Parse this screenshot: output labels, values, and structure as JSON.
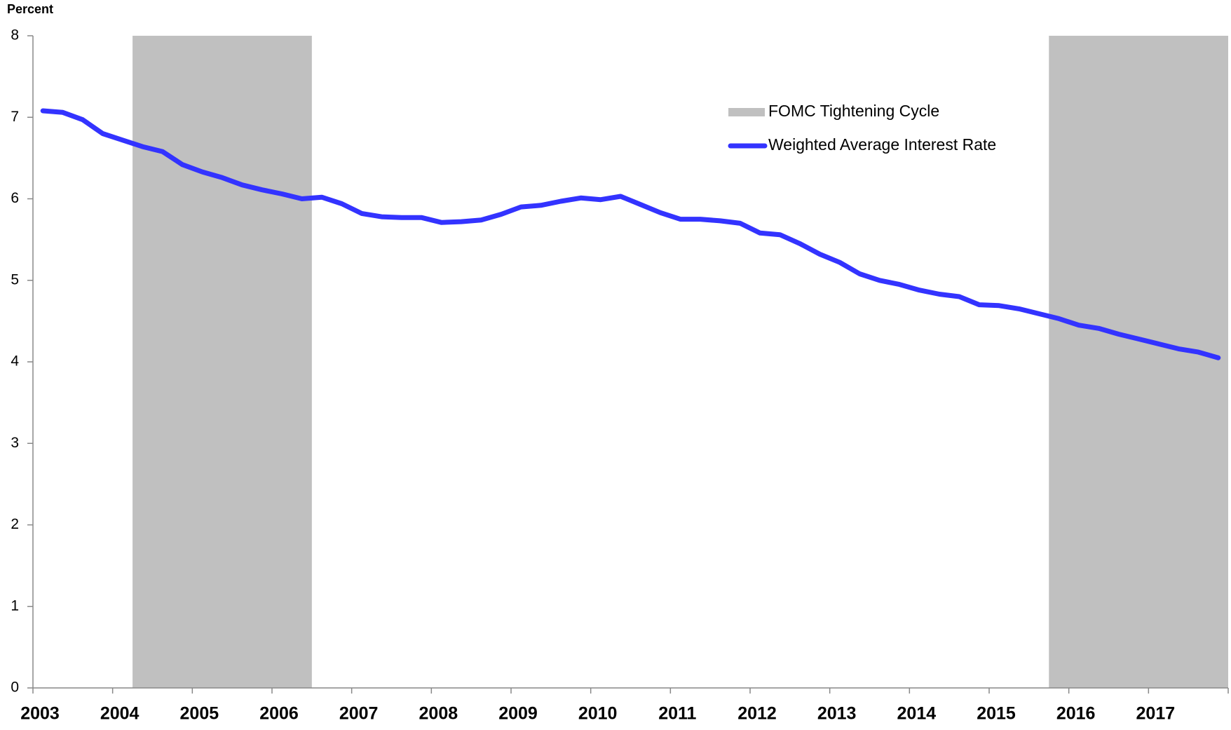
{
  "chart_data": {
    "type": "line",
    "y_label": "Percent",
    "x": [
      2003.125,
      2003.375,
      2003.625,
      2003.875,
      2004.125,
      2004.375,
      2004.625,
      2004.875,
      2005.125,
      2005.375,
      2005.625,
      2005.875,
      2006.125,
      2006.375,
      2006.625,
      2006.875,
      2007.125,
      2007.375,
      2007.625,
      2007.875,
      2008.125,
      2008.375,
      2008.625,
      2008.875,
      2009.125,
      2009.375,
      2009.625,
      2009.875,
      2010.125,
      2010.375,
      2010.625,
      2010.875,
      2011.125,
      2011.375,
      2011.625,
      2011.875,
      2012.125,
      2012.375,
      2012.625,
      2012.875,
      2013.125,
      2013.375,
      2013.625,
      2013.875,
      2014.125,
      2014.375,
      2014.625,
      2014.875,
      2015.125,
      2015.375,
      2015.625,
      2015.875,
      2016.125,
      2016.375,
      2016.625,
      2016.875,
      2017.125,
      2017.375,
      2017.625,
      2017.875
    ],
    "series": [
      {
        "name": "Weighted Average Interest Rate",
        "color": "#3333ff",
        "values": [
          7.08,
          7.06,
          6.97,
          6.8,
          6.72,
          6.64,
          6.58,
          6.42,
          6.33,
          6.26,
          6.17,
          6.11,
          6.06,
          6.0,
          6.02,
          5.94,
          5.82,
          5.78,
          5.77,
          5.77,
          5.71,
          5.72,
          5.74,
          5.81,
          5.9,
          5.92,
          5.97,
          6.01,
          5.99,
          6.03,
          5.93,
          5.83,
          5.75,
          5.75,
          5.73,
          5.7,
          5.58,
          5.56,
          5.45,
          5.32,
          5.22,
          5.08,
          5.0,
          4.95,
          4.88,
          4.83,
          4.8,
          4.7,
          4.69,
          4.65,
          4.59,
          4.53,
          4.45,
          4.41,
          4.34,
          4.28,
          4.22,
          4.16,
          4.12,
          4.05
        ]
      }
    ],
    "shaded": {
      "name": "FOMC Tightening Cycle",
      "color": "#c0c0c0",
      "ranges": [
        [
          2004.25,
          2006.5
        ],
        [
          2015.75,
          2018
        ]
      ]
    },
    "xlim": [
      2003,
      2018
    ],
    "xticks": [
      2003,
      2004,
      2005,
      2006,
      2007,
      2008,
      2009,
      2010,
      2011,
      2012,
      2013,
      2014,
      2015,
      2016,
      2017
    ],
    "ylim": [
      0,
      8
    ],
    "yticks": [
      0,
      1,
      2,
      3,
      4,
      5,
      6,
      7,
      8
    ],
    "grid": false,
    "legend_position": "upper right"
  }
}
